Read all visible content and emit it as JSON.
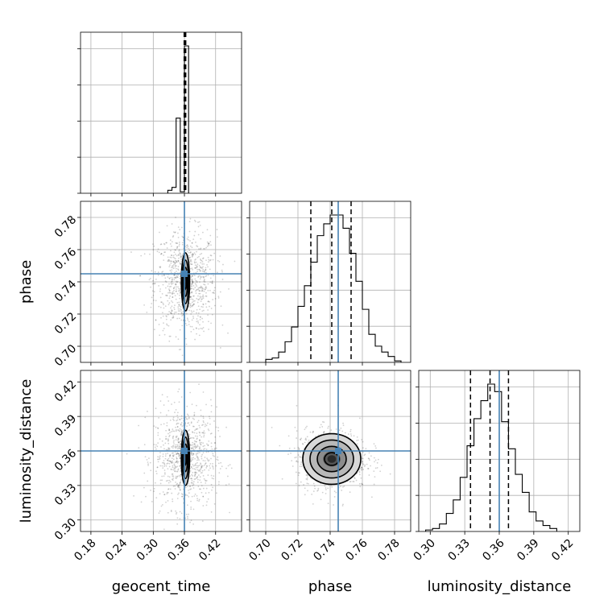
{
  "chart_data": {
    "type": "corner",
    "parameters": [
      "geocent_time",
      "phase",
      "luminosity_distance"
    ],
    "truths": {
      "geocent_time": 0.36,
      "phase": 0.745,
      "luminosity_distance": 0.36
    },
    "truth_color": "#4682b4",
    "grid": true,
    "axes": {
      "geocent_time": {
        "label": "geocent_time",
        "range": [
          0.16,
          0.47
        ],
        "ticks": [
          0.18,
          0.24,
          0.3,
          0.36,
          0.42
        ],
        "tick_labels": [
          "0.18",
          "0.24",
          "0.30",
          "0.36",
          "0.42"
        ]
      },
      "phase": {
        "label": "phase",
        "range": [
          0.69,
          0.79
        ],
        "ticks": [
          0.7,
          0.72,
          0.74,
          0.76,
          0.78
        ],
        "tick_labels": [
          "0.70",
          "0.72",
          "0.74",
          "0.76",
          "0.78"
        ]
      },
      "luminosity_distance": {
        "label": "luminosity_distance",
        "range": [
          0.29,
          0.43
        ],
        "ticks": [
          0.3,
          0.33,
          0.36,
          0.39,
          0.42
        ],
        "tick_labels": [
          "0.30",
          "0.33",
          "0.36",
          "0.39",
          "0.42"
        ]
      }
    },
    "marginals": [
      {
        "parameter": "geocent_time",
        "bin_edges": [
          0.328,
          0.336,
          0.344,
          0.352,
          0.36,
          0.368
        ],
        "counts": [
          2,
          4,
          51,
          1,
          100
        ],
        "quantiles": [
          0.3595,
          0.3605,
          0.3625
        ]
      },
      {
        "parameter": "phase",
        "bin_edges": [
          0.7,
          0.704,
          0.708,
          0.712,
          0.716,
          0.72,
          0.724,
          0.728,
          0.732,
          0.736,
          0.74,
          0.744,
          0.748,
          0.752,
          0.756,
          0.76,
          0.764,
          0.768,
          0.772,
          0.776,
          0.78,
          0.784
        ],
        "counts": [
          2,
          3,
          7,
          14,
          24,
          38,
          52,
          68,
          86,
          94,
          100,
          100,
          91,
          74,
          55,
          36,
          19,
          11,
          7,
          4,
          1
        ],
        "quantiles": [
          0.728,
          0.741,
          0.753
        ]
      },
      {
        "parameter": "luminosity_distance",
        "bin_edges": [
          0.296,
          0.302,
          0.308,
          0.314,
          0.32,
          0.326,
          0.332,
          0.338,
          0.344,
          0.35,
          0.356,
          0.362,
          0.368,
          0.374,
          0.38,
          0.386,
          0.392,
          0.398,
          0.404,
          0.41
        ],
        "counts": [
          1,
          2,
          5,
          12,
          21,
          36,
          57,
          75,
          87,
          98,
          93,
          73,
          55,
          38,
          26,
          13,
          7,
          4,
          2
        ],
        "quantiles": [
          0.335,
          0.352,
          0.368
        ]
      }
    ],
    "joints": [
      {
        "x": "geocent_time",
        "y": "phase",
        "center": [
          0.362,
          0.74
        ],
        "sigma": [
          0.004,
          0.009
        ],
        "scatter_sigma": [
          0.03,
          0.016
        ],
        "contour_levels": [
          0.5,
          1.0,
          1.5,
          2.0
        ]
      },
      {
        "x": "geocent_time",
        "y": "luminosity_distance",
        "center": [
          0.362,
          0.354
        ],
        "sigma": [
          0.004,
          0.012
        ],
        "scatter_sigma": [
          0.03,
          0.022
        ],
        "contour_levels": [
          0.5,
          1.0,
          1.5,
          2.0
        ]
      },
      {
        "x": "phase",
        "y": "luminosity_distance",
        "center": [
          0.741,
          0.353
        ],
        "sigma": [
          0.009,
          0.011
        ],
        "scatter_sigma": [
          0.011,
          0.013
        ],
        "contour_levels": [
          0.5,
          1.0,
          1.5,
          2.0
        ]
      }
    ]
  }
}
